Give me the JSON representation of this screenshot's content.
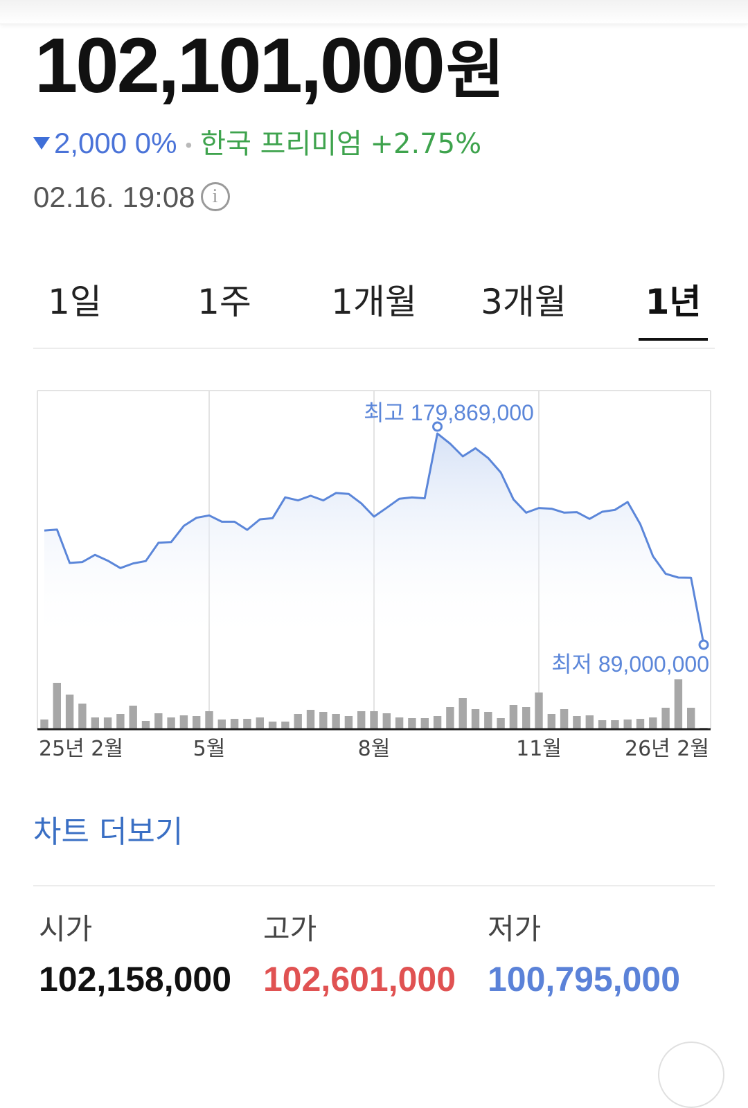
{
  "price": {
    "value": "102,101,000",
    "unit": "원"
  },
  "change": {
    "amount": "2,000",
    "percent": "0%",
    "direction": "down",
    "premium_label": "한국 프리미엄",
    "premium_value": "+2.75%"
  },
  "timestamp": "02.16. 19:08",
  "info_icon": "info-icon",
  "tabs": [
    {
      "label": "1일",
      "active": false
    },
    {
      "label": "1주",
      "active": false
    },
    {
      "label": "1개월",
      "active": false
    },
    {
      "label": "3개월",
      "active": false
    },
    {
      "label": "1년",
      "active": true
    }
  ],
  "chart_data": {
    "type": "area",
    "x_tick_labels": [
      "25년 2월",
      "5월",
      "8월",
      "11월",
      "26년 2월"
    ],
    "y_range": [
      89000000,
      179869000
    ],
    "grid": "vertical",
    "max_label": "최고 179,869,000",
    "min_label": "최저 89,000,000",
    "max_value": 179869000,
    "min_value": 89000000,
    "line_color": "#5b86d9",
    "volume_color": "#a7a7a7",
    "price_values": [
      138000000,
      138400000,
      124000000,
      124400000,
      127500000,
      125000000,
      121800000,
      123800000,
      124800000,
      132700000,
      133000000,
      140000000,
      143500000,
      144500000,
      141800000,
      141800000,
      138300000,
      142800000,
      143300000,
      152300000,
      151000000,
      153000000,
      151000000,
      154200000,
      153800000,
      149700000,
      144000000,
      147800000,
      151700000,
      152300000,
      151900000,
      179869000,
      175500000,
      170000000,
      173500000,
      169300000,
      163000000,
      151400000,
      145700000,
      147700000,
      147400000,
      145700000,
      145900000,
      143000000,
      146100000,
      146900000,
      150300000,
      140700000,
      126900000,
      119300000,
      117700000,
      117600000,
      89000000
    ],
    "volume_values": [
      14,
      67,
      50,
      37,
      17,
      17,
      22,
      34,
      12,
      23,
      17,
      20,
      19,
      26,
      14,
      15,
      15,
      17,
      11,
      11,
      22,
      28,
      25,
      22,
      19,
      26,
      26,
      23,
      17,
      16,
      16,
      19,
      32,
      45,
      29,
      25,
      16,
      35,
      32,
      53,
      22,
      29,
      19,
      20,
      13,
      13,
      14,
      15,
      17,
      31,
      72,
      31,
      2
    ]
  },
  "more_chart_label": "차트 더보기",
  "stats": {
    "open": {
      "label": "시가",
      "value": "102,158,000",
      "color": "#111111"
    },
    "high": {
      "label": "고가",
      "value": "102,601,000",
      "color": "#e05252"
    },
    "low": {
      "label": "저가",
      "value": "100,795,000",
      "color": "#5b82d8"
    }
  },
  "colors": {
    "down": "#4a73d8",
    "premium": "#3ea34d",
    "link": "#3a6fc4"
  }
}
